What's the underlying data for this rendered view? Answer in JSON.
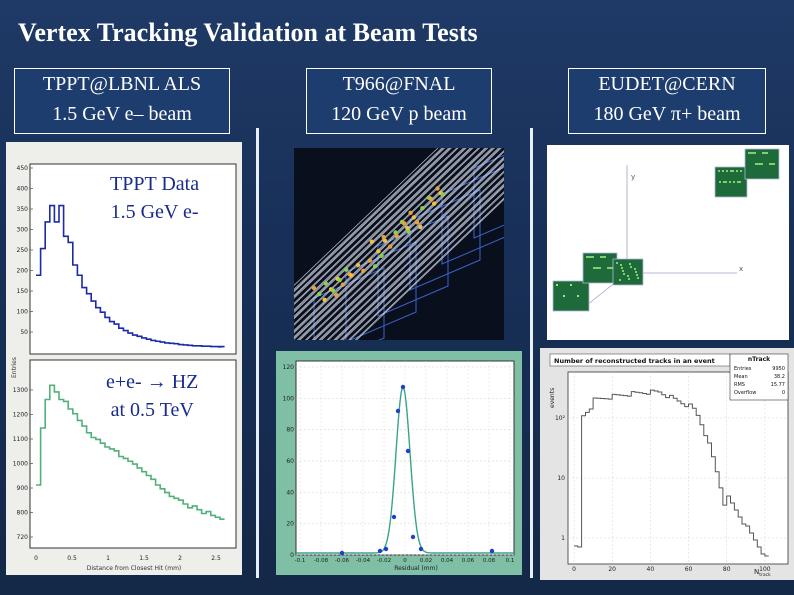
{
  "title": "Vertex Tracking Validation at Beam Tests",
  "columns": [
    {
      "line1": "TPPT@LBNL ALS",
      "line2": "1.5 GeV e– beam"
    },
    {
      "line1": "T966@FNAL",
      "line2": "120 GeV p beam"
    },
    {
      "line1": "EUDET@CERN",
      "line2": "180 GeV π+ beam"
    }
  ],
  "left_panel": {
    "top_overlay": {
      "line1": "TPPT Data",
      "line2": "1.5 GeV e-"
    },
    "bottom_overlay": {
      "line1": "e+e- → HZ",
      "line2": "at 0.5 TeV"
    },
    "top_y_ticks": [
      "450",
      "400",
      "350",
      "300",
      "250",
      "200",
      "150",
      "100",
      "50"
    ],
    "bottom_y_ticks": [
      "1300",
      "1200",
      "1100",
      "1000",
      "900",
      "800",
      "720"
    ],
    "bottom_ylabel": "Entries",
    "x_ticks": [
      "0",
      "0.5",
      "1",
      "1.5",
      "2",
      "2.5"
    ],
    "xlabel": "Distance from Closest Hit (mm)"
  },
  "residual_plot": {
    "y_ticks": [
      "120",
      "100",
      "80",
      "60",
      "40",
      "20",
      "0"
    ],
    "x_ticks": [
      "-0.1",
      "-0.08",
      "-0.06",
      "-0.04",
      "-0.02",
      "0",
      "0.02",
      "0.04",
      "0.06",
      "0.08",
      "0.1"
    ],
    "xlabel": "Residual (mm)"
  },
  "ntrack_plot": {
    "title": "Number of reconstructed tracks in an event",
    "stats_title": "nTrack",
    "stats": [
      {
        "label": "Entries",
        "value": "9950"
      },
      {
        "label": "Mean",
        "value": "38.2"
      },
      {
        "label": "RMS",
        "value": "15.77"
      },
      {
        "label": "Overflow",
        "value": "0"
      }
    ],
    "ylabel": "events",
    "y_ticks": [
      "10²",
      "10",
      "1"
    ],
    "x_ticks": [
      "0",
      "20",
      "40",
      "60",
      "80",
      "100"
    ],
    "xlabel": "N",
    "xlabel_sub": "track"
  },
  "event_display": {
    "axis_y": "y",
    "axis_x": "x"
  }
}
